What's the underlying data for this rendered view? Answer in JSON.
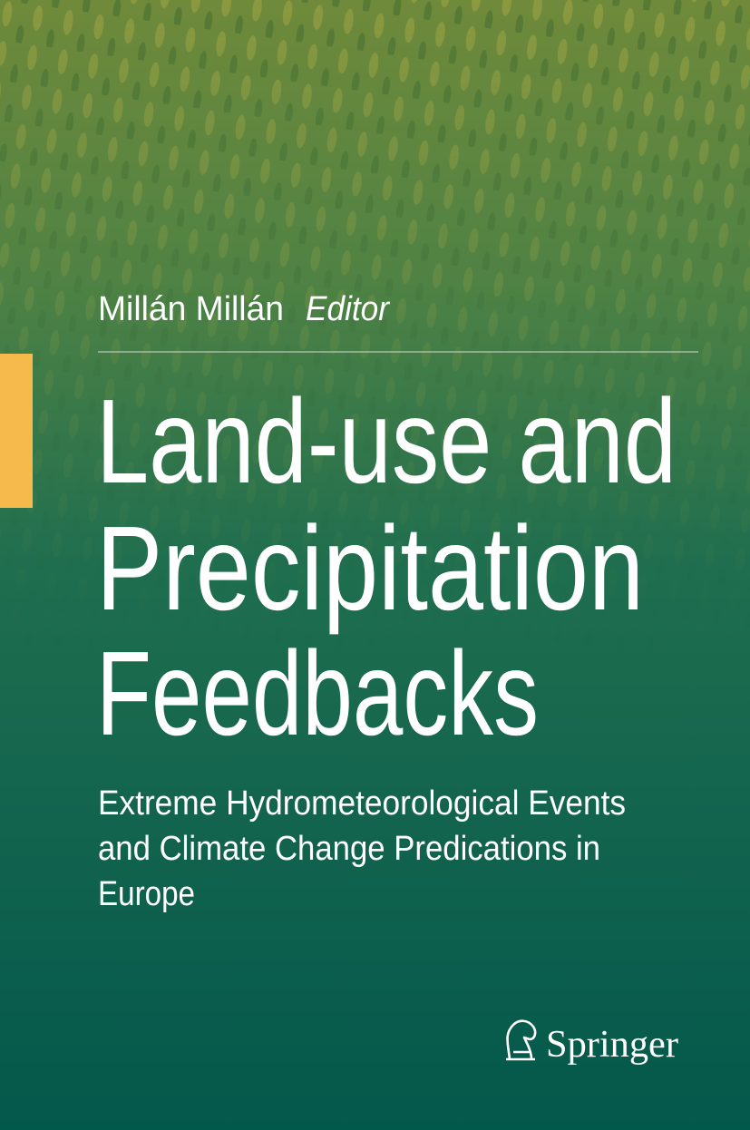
{
  "cover": {
    "editor": {
      "name": "Millán Millán",
      "role": "Editor"
    },
    "title_lines": [
      "Land-use and",
      "Precipitation",
      "Feedbacks"
    ],
    "subtitle_lines": [
      "Extreme Hydrometeorological Events",
      "and Climate Change Predications in",
      "Europe"
    ],
    "publisher": "Springer"
  }
}
